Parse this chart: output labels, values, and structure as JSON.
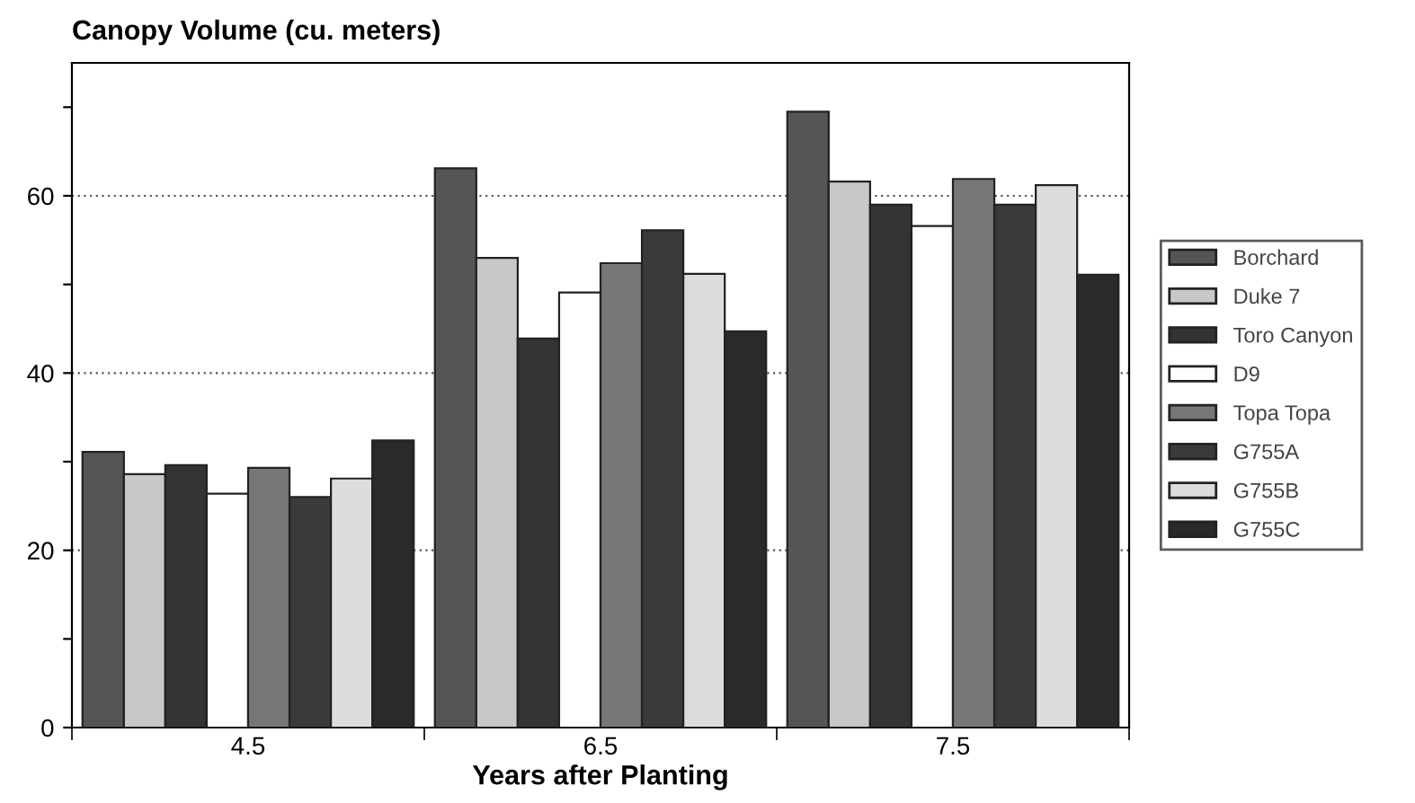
{
  "chart_data": {
    "type": "bar",
    "title": "Canopy Volume (cu. meters)",
    "xlabel": "Years after Planting",
    "categories": [
      "4.5",
      "6.5",
      "7.5"
    ],
    "series": [
      {
        "name": "Borchard",
        "color": "#555555",
        "values": [
          31.1,
          63.1,
          69.5
        ]
      },
      {
        "name": "Duke 7",
        "color": "#c8c8c8",
        "values": [
          28.6,
          53.0,
          61.6
        ]
      },
      {
        "name": "Toro Canyon",
        "color": "#333333",
        "values": [
          29.6,
          43.9,
          59.0
        ]
      },
      {
        "name": "D9",
        "color": "#ffffff",
        "values": [
          26.4,
          49.1,
          56.6
        ]
      },
      {
        "name": "Topa Topa",
        "color": "#777777",
        "values": [
          29.3,
          52.4,
          61.9
        ]
      },
      {
        "name": "G755A",
        "color": "#3a3a3a",
        "values": [
          26.0,
          56.1,
          59.0
        ]
      },
      {
        "name": "G755B",
        "color": "#dddddd",
        "values": [
          28.1,
          51.2,
          61.2
        ]
      },
      {
        "name": "G755C",
        "color": "#2a2a2a",
        "values": [
          32.4,
          44.7,
          51.1
        ]
      }
    ],
    "ylim": [
      0,
      75
    ],
    "yticks": [
      0,
      {
        "value": 10,
        "label": null
      },
      20,
      {
        "value": 30,
        "label": null
      },
      40,
      {
        "value": 50,
        "label": null
      },
      60,
      {
        "value": 70,
        "label": null
      }
    ],
    "grid": "y",
    "legend": "right"
  }
}
